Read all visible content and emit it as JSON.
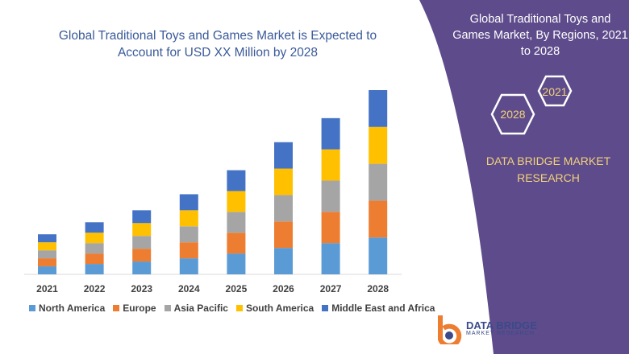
{
  "header": {
    "title": "Global Traditional Toys and Games Market is Expected to Account for USD XX Million by 2028"
  },
  "side_panel": {
    "title": "Global Traditional Toys and Games Market, By Regions, 2021 to 2028",
    "hex_start": "2021",
    "hex_end": "2028",
    "brand": "DATA BRIDGE MARKET RESEARCH",
    "color": "#5e4b8b"
  },
  "logo": {
    "line1": "DATA BRIDGE",
    "line2": "MARKET RESEARCH"
  },
  "chart_data": {
    "type": "bar",
    "stacked": true,
    "title": "Global Traditional Toys and Games Market is Expected to Account for USD XX Million by 2028",
    "xlabel": "",
    "ylabel": "",
    "grid": false,
    "legend": "bottom",
    "categories": [
      "2021",
      "2022",
      "2023",
      "2024",
      "2025",
      "2026",
      "2027",
      "2028"
    ],
    "series": [
      {
        "name": "North America",
        "color": "#5b9bd5",
        "values": [
          10,
          13,
          16,
          20,
          26,
          33,
          39,
          46
        ]
      },
      {
        "name": "Europe",
        "color": "#ed7d31",
        "values": [
          10,
          13,
          16,
          20,
          26,
          33,
          39,
          46
        ]
      },
      {
        "name": "Asia Pacific",
        "color": "#a5a5a5",
        "values": [
          10,
          13,
          16,
          20,
          26,
          33,
          39,
          46
        ]
      },
      {
        "name": "South America",
        "color": "#ffc000",
        "values": [
          10,
          13,
          16,
          20,
          26,
          33,
          39,
          46
        ]
      },
      {
        "name": "Middle East and Africa",
        "color": "#4472c4",
        "values": [
          10,
          13,
          16,
          20,
          26,
          33,
          39,
          46
        ]
      }
    ]
  }
}
